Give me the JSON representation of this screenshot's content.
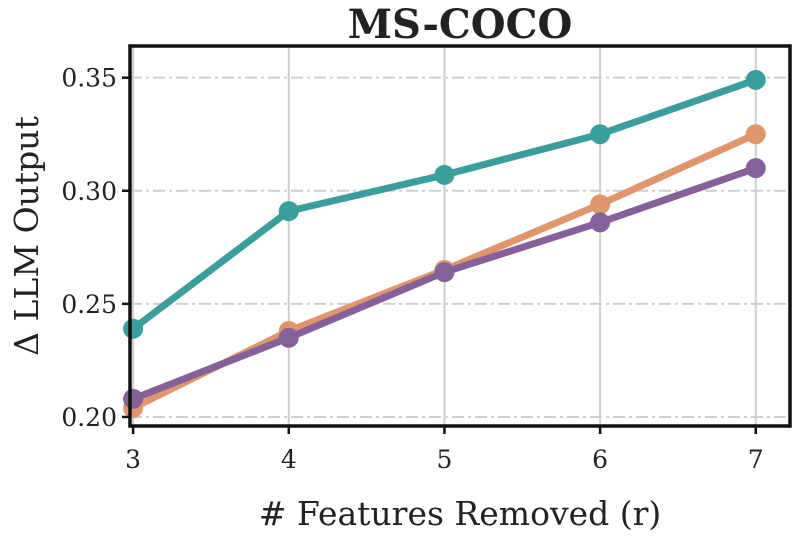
{
  "chart_data": {
    "type": "line",
    "title": "MS-COCO",
    "xlabel": "# Features Removed (r)",
    "ylabel": "Δ LLM Output",
    "x": [
      3,
      4,
      5,
      6,
      7
    ],
    "x_tick_labels": [
      "3",
      "4",
      "5",
      "6",
      "7"
    ],
    "y_tick_labels": [
      "0.20",
      "0.25",
      "0.30",
      "0.35"
    ],
    "y_ticks": [
      0.2,
      0.25,
      0.3,
      0.35
    ],
    "xlim": [
      2.98,
      7.22
    ],
    "ylim": [
      0.196,
      0.364
    ],
    "grid": true,
    "legend": "none",
    "series": [
      {
        "color": "#3a9e9e",
        "values": [
          0.239,
          0.291,
          0.307,
          0.325,
          0.349
        ]
      },
      {
        "color": "#e0956a",
        "values": [
          0.204,
          0.238,
          0.265,
          0.294,
          0.325
        ]
      },
      {
        "color": "#85609a",
        "values": [
          0.208,
          0.235,
          0.264,
          0.286,
          0.31
        ]
      }
    ]
  }
}
